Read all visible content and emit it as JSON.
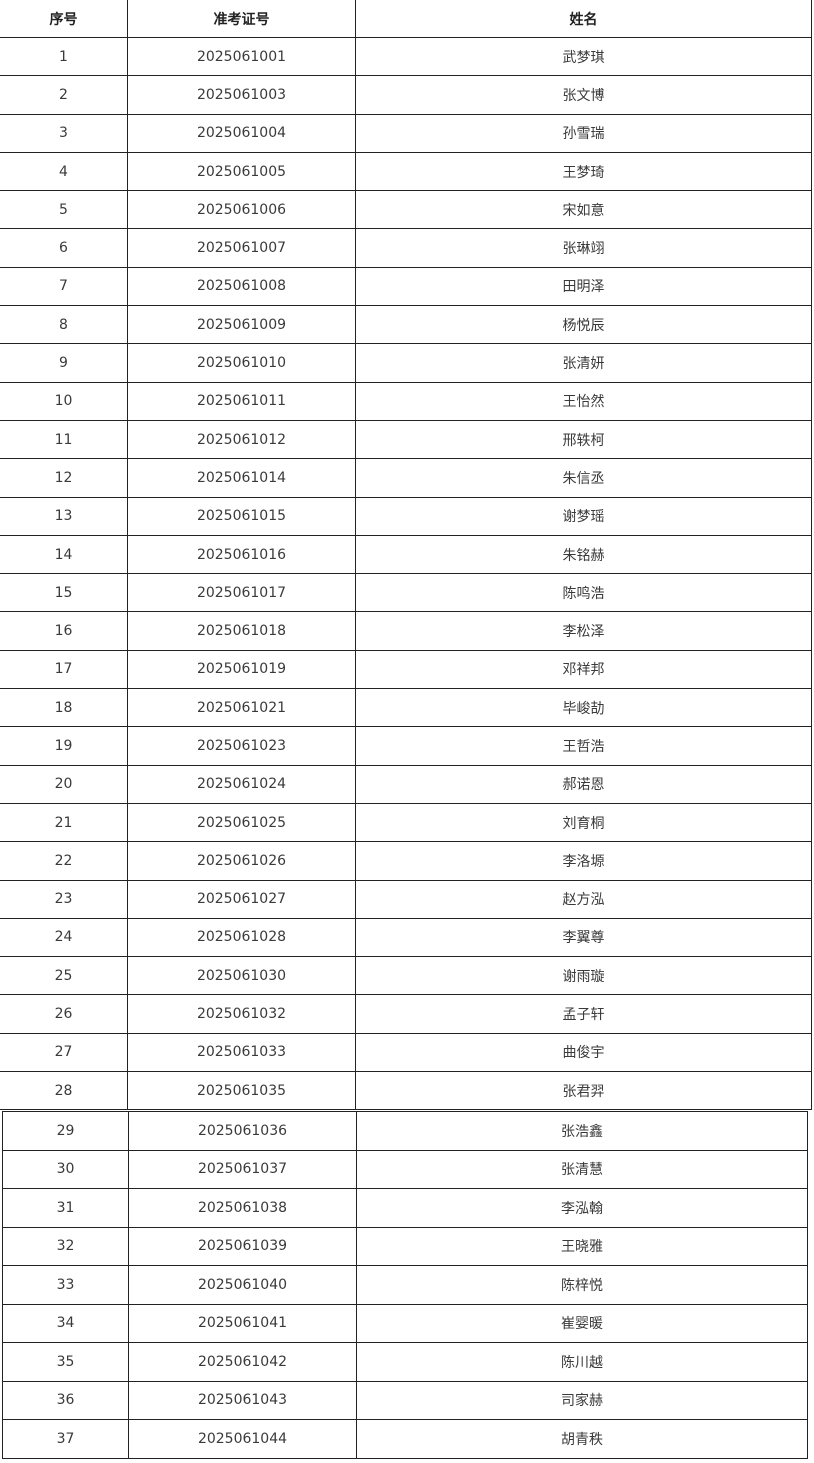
{
  "headers": [
    "序号",
    "准考证号",
    "姓名"
  ],
  "rows": [
    [
      "1",
      "2025061001",
      "武梦琪"
    ],
    [
      "2",
      "2025061003",
      "张文博"
    ],
    [
      "3",
      "2025061004",
      "孙雪瑞"
    ],
    [
      "4",
      "2025061005",
      "王梦琦"
    ],
    [
      "5",
      "2025061006",
      "宋如意"
    ],
    [
      "6",
      "2025061007",
      "张琳翊"
    ],
    [
      "7",
      "2025061008",
      "田明泽"
    ],
    [
      "8",
      "2025061009",
      "杨悦辰"
    ],
    [
      "9",
      "2025061010",
      "张清妍"
    ],
    [
      "10",
      "2025061011",
      "王怡然"
    ],
    [
      "11",
      "2025061012",
      "邢轶柯"
    ],
    [
      "12",
      "2025061014",
      "朱信丞"
    ],
    [
      "13",
      "2025061015",
      "谢梦瑶"
    ],
    [
      "14",
      "2025061016",
      "朱铭赫"
    ],
    [
      "15",
      "2025061017",
      "陈鸣浩"
    ],
    [
      "16",
      "2025061018",
      "李松泽"
    ],
    [
      "17",
      "2025061019",
      "邓祥邦"
    ],
    [
      "18",
      "2025061021",
      "毕峻劼"
    ],
    [
      "19",
      "2025061023",
      "王哲浩"
    ],
    [
      "20",
      "2025061024",
      "郝诺恩"
    ],
    [
      "21",
      "2025061025",
      "刘育桐"
    ],
    [
      "22",
      "2025061026",
      "李洛塬"
    ],
    [
      "23",
      "2025061027",
      "赵方泓"
    ],
    [
      "24",
      "2025061028",
      "李翼尊"
    ],
    [
      "25",
      "2025061030",
      "谢雨璇"
    ],
    [
      "26",
      "2025061032",
      "孟子轩"
    ],
    [
      "27",
      "2025061033",
      "曲俊宇"
    ],
    [
      "28",
      "2025061035",
      "张君羿"
    ],
    [
      "29",
      "2025061036",
      "张浩鑫"
    ],
    [
      "30",
      "2025061037",
      "张清慧"
    ],
    [
      "31",
      "2025061038",
      "李泓翰"
    ],
    [
      "32",
      "2025061039",
      "王晓雅"
    ],
    [
      "33",
      "2025061040",
      "陈梓悦"
    ],
    [
      "34",
      "2025061041",
      "崔婴暖"
    ],
    [
      "35",
      "2025061042",
      "陈川越"
    ],
    [
      "36",
      "2025061043",
      "司家赫"
    ],
    [
      "37",
      "2025061044",
      "胡青秩"
    ]
  ]
}
